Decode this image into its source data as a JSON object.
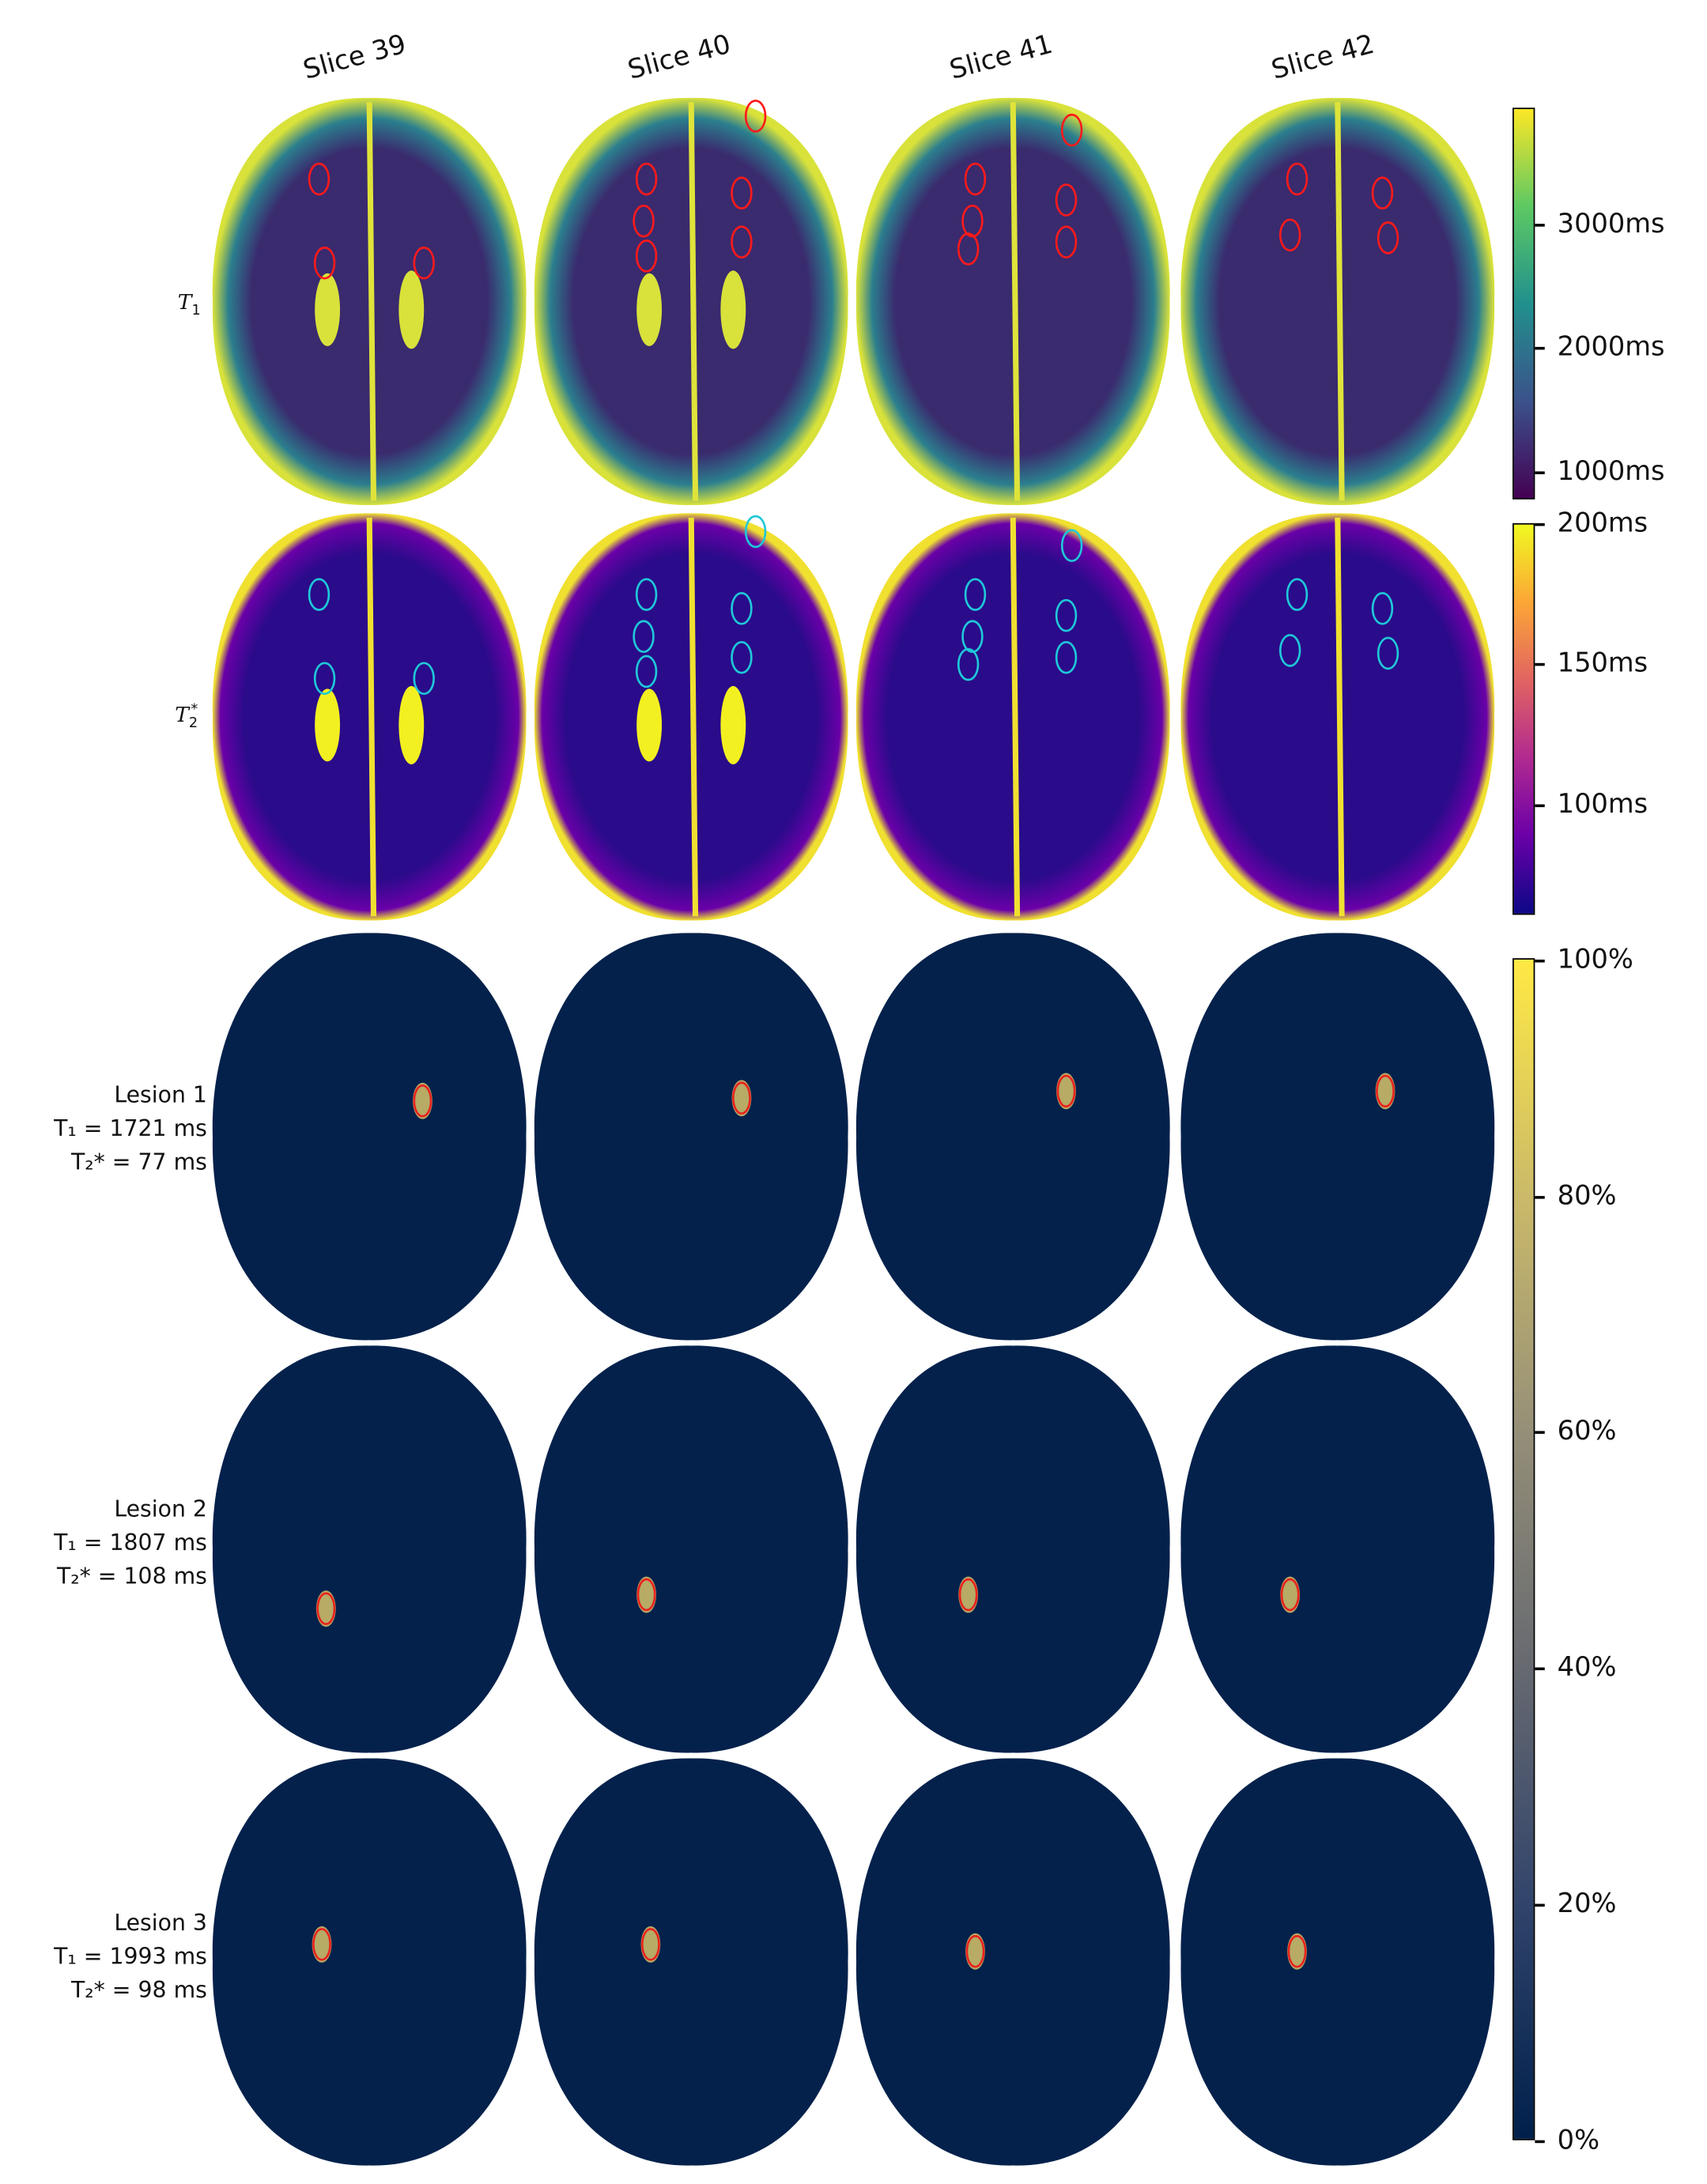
{
  "columns": [
    "Slice 39",
    "Slice 40",
    "Slice 41",
    "Slice 42"
  ],
  "rows": {
    "t1_label": {
      "main": "T",
      "sub": "1",
      "sup": ""
    },
    "t2_label": {
      "main": "T",
      "sub": "2",
      "sup": "*"
    }
  },
  "lesions": [
    {
      "name": "Lesion 1",
      "t1": "T₁ = 1721 ms",
      "t2": "T₂* = 77 ms"
    },
    {
      "name": "Lesion 2",
      "t1": "T₁ = 1807 ms",
      "t2": "T₂* = 108 ms"
    },
    {
      "name": "Lesion 3",
      "t1": "T₁ = 1993 ms",
      "t2": "T₂* = 98 ms"
    }
  ],
  "colorbars": [
    {
      "colormap": "viridis",
      "ticks": [
        "3000ms",
        "2000ms",
        "1000ms"
      ]
    },
    {
      "colormap": "plasma",
      "ticks": [
        "200ms",
        "150ms",
        "100ms"
      ]
    },
    {
      "colormap": "cividis",
      "ticks": [
        "100%",
        "80%",
        "60%",
        "40%",
        "20%",
        "0%"
      ]
    }
  ],
  "colors": {
    "t1_contour": "#ff1a1a",
    "t2_contour": "#1fc8d8",
    "lesion_background": "#03214b",
    "lesion_contour": "#e8231f"
  }
}
